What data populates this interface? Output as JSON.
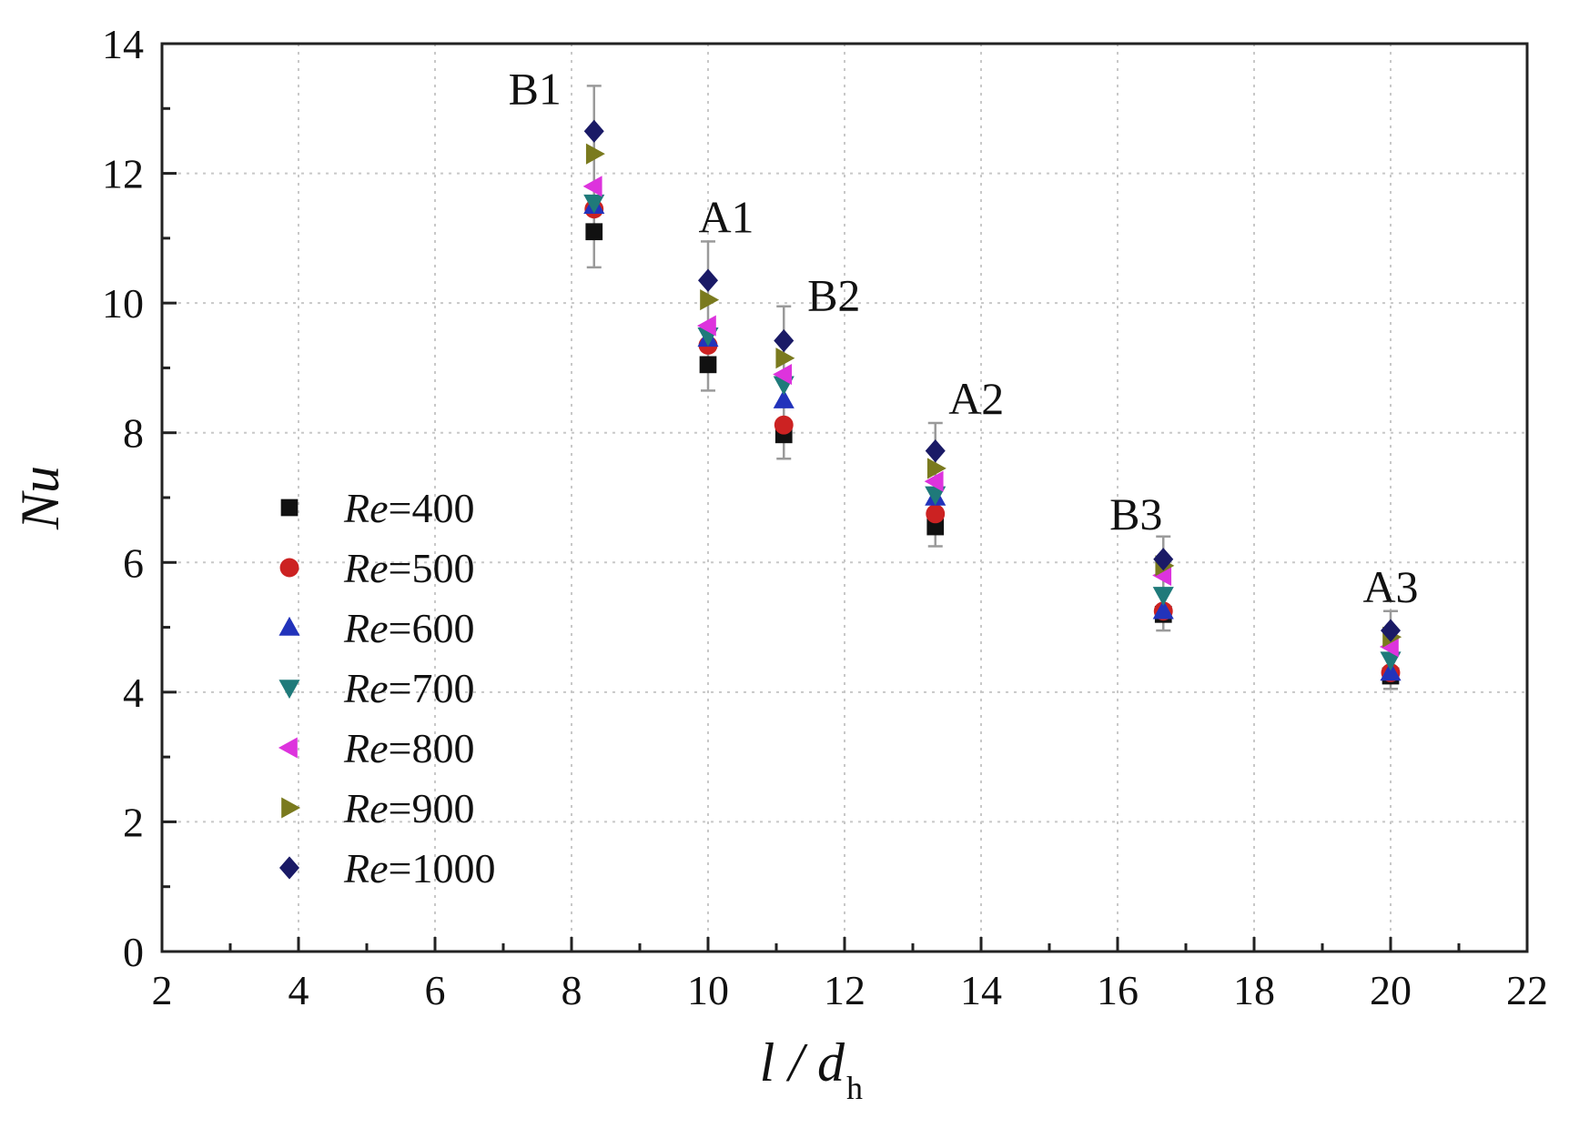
{
  "chart_data": {
    "type": "scatter",
    "title": "",
    "xlabel": "l / d",
    "xlabel_sub": "h",
    "ylabel": "Nu",
    "xlim": [
      2,
      22
    ],
    "ylim": [
      0,
      14
    ],
    "x_ticks": [
      2,
      4,
      6,
      8,
      10,
      12,
      14,
      16,
      18,
      20,
      22
    ],
    "y_ticks": [
      0,
      2,
      4,
      6,
      8,
      10,
      12,
      14
    ],
    "grid": true,
    "legend_position": "left-middle",
    "x": [
      8.33,
      10.0,
      11.11,
      13.33,
      16.67,
      20.0
    ],
    "point_labels": [
      "B1",
      "A1",
      "B2",
      "A2",
      "B3",
      "A3"
    ],
    "series": [
      {
        "name": "Re=400",
        "re": "Re",
        "val": "=400",
        "marker": "square",
        "color": "#111111",
        "values": [
          11.1,
          9.05,
          7.97,
          6.55,
          5.2,
          4.25
        ]
      },
      {
        "name": "Re=500",
        "re": "Re",
        "val": "=500",
        "marker": "circle",
        "color": "#cc2222",
        "values": [
          11.45,
          9.35,
          8.12,
          6.75,
          5.25,
          4.3
        ]
      },
      {
        "name": "Re=600",
        "re": "Re",
        "val": "=600",
        "marker": "triangle-up",
        "color": "#2233bb",
        "values": [
          11.5,
          9.45,
          8.5,
          7.0,
          5.25,
          4.3
        ]
      },
      {
        "name": "Re=700",
        "re": "Re",
        "val": "=700",
        "marker": "triangle-down",
        "color": "#1f7a7a",
        "values": [
          11.55,
          9.5,
          8.75,
          7.05,
          5.5,
          4.5
        ]
      },
      {
        "name": "Re=800",
        "re": "Re",
        "val": "=800",
        "marker": "triangle-left",
        "color": "#dd33dd",
        "values": [
          11.8,
          9.65,
          8.9,
          7.25,
          5.8,
          4.7
        ]
      },
      {
        "name": "Re=900",
        "re": "Re",
        "val": "=900",
        "marker": "triangle-right",
        "color": "#7a7a1e",
        "values": [
          12.3,
          10.05,
          9.15,
          7.45,
          5.95,
          4.85
        ]
      },
      {
        "name": "Re=1000",
        "re": "Re",
        "val": "=1000",
        "marker": "diamond",
        "color": "#1a1a66",
        "values": [
          12.65,
          10.35,
          9.42,
          7.72,
          6.05,
          4.95
        ]
      }
    ],
    "error_bars": {
      "upper": [
        13.35,
        10.95,
        9.95,
        8.15,
        6.4,
        5.25
      ],
      "lower": [
        10.55,
        8.65,
        7.6,
        6.25,
        4.95,
        4.05
      ]
    }
  }
}
